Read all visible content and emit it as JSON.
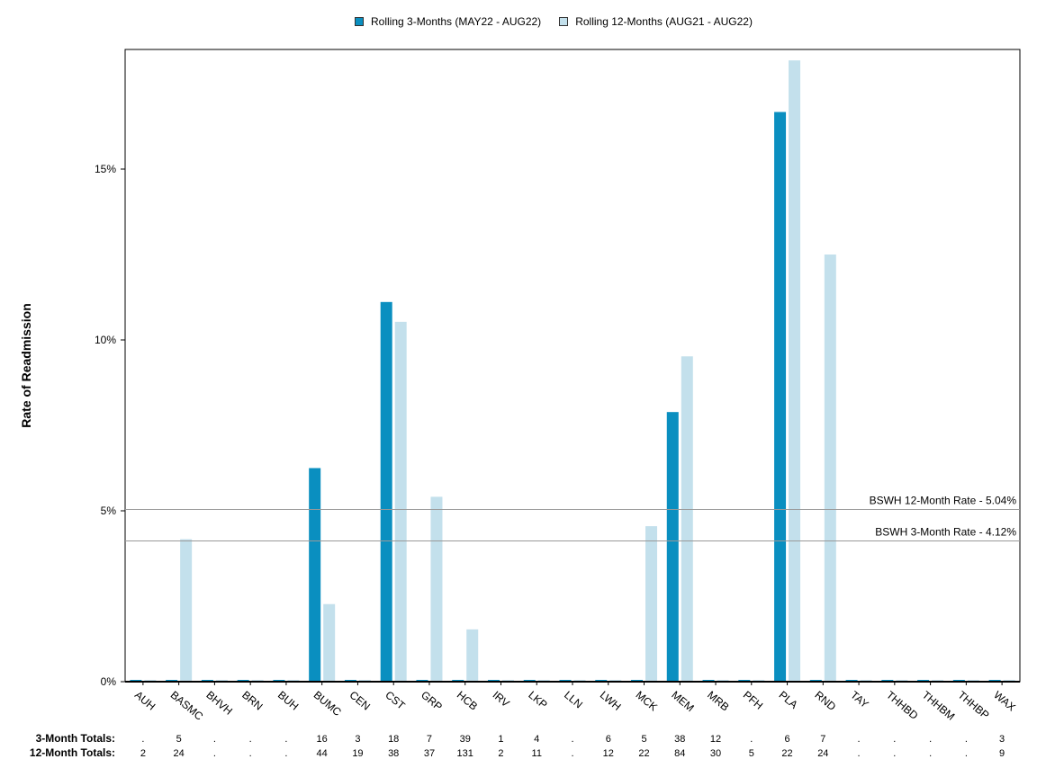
{
  "colors": {
    "three_month": "#0a8fc0",
    "twelve_month": "#c3e0ec",
    "ref_line": "#999999"
  },
  "legend": {
    "three_month": "Rolling 3-Months (MAY22 - AUG22)",
    "twelve_month": "Rolling 12-Months (AUG21 - AUG22)"
  },
  "chart_data": {
    "type": "bar",
    "ylabel": "Rate of Readmission",
    "xlabel": "",
    "ylim": [
      0,
      18.5
    ],
    "y_ticks": [
      0,
      5,
      10,
      15
    ],
    "y_tick_labels": [
      "0%",
      "5%",
      "10%",
      "15%"
    ],
    "grid": false,
    "legend_position": "top",
    "categories": [
      "AUH",
      "BASMC",
      "BHVH",
      "BRN",
      "BUH",
      "BUMC",
      "CEN",
      "CST",
      "GRP",
      "HCB",
      "IRV",
      "LKP",
      "LLN",
      "LWH",
      "MCK",
      "MEM",
      "MRB",
      "PFH",
      "PLA",
      "RND",
      "TAY",
      "THHBD",
      "THHBM",
      "THHBP",
      "WAX"
    ],
    "series": [
      {
        "name": "Rolling 3-Months (MAY22 - AUG22)",
        "values": [
          0,
          0,
          0,
          0,
          0,
          6.25,
          0,
          11.11,
          0,
          0,
          0,
          0,
          0,
          0,
          0,
          7.89,
          0,
          0,
          16.67,
          0,
          0,
          0,
          0,
          0,
          0
        ]
      },
      {
        "name": "Rolling 12-Months (AUG21 - AUG22)",
        "values": [
          0,
          4.17,
          0,
          0,
          0,
          2.27,
          0,
          10.53,
          5.41,
          1.53,
          0,
          0,
          0,
          0,
          4.55,
          9.52,
          0,
          0,
          18.18,
          12.5,
          0,
          0,
          0,
          0,
          0
        ]
      }
    ],
    "reference_lines": [
      {
        "label": "BSWH 12-Month Rate - 5.04%",
        "value": 5.04
      },
      {
        "label": "BSWH  3-Month Rate - 4.12%",
        "value": 4.12
      }
    ],
    "totals": {
      "three_month_label": "3-Month Totals:",
      "twelve_month_label": "12-Month Totals:",
      "three_month": [
        ".",
        "5",
        ".",
        ".",
        ".",
        "16",
        "3",
        "18",
        "7",
        "39",
        "1",
        "4",
        ".",
        "6",
        "5",
        "38",
        "12",
        ".",
        "6",
        "7",
        ".",
        ".",
        ".",
        ".",
        "3"
      ],
      "twelve_month": [
        "2",
        "24",
        ".",
        ".",
        ".",
        "44",
        "19",
        "38",
        "37",
        "131",
        "2",
        "11",
        ".",
        "12",
        "22",
        "84",
        "30",
        "5",
        "22",
        "24",
        ".",
        ".",
        ".",
        ".",
        "9"
      ]
    }
  }
}
